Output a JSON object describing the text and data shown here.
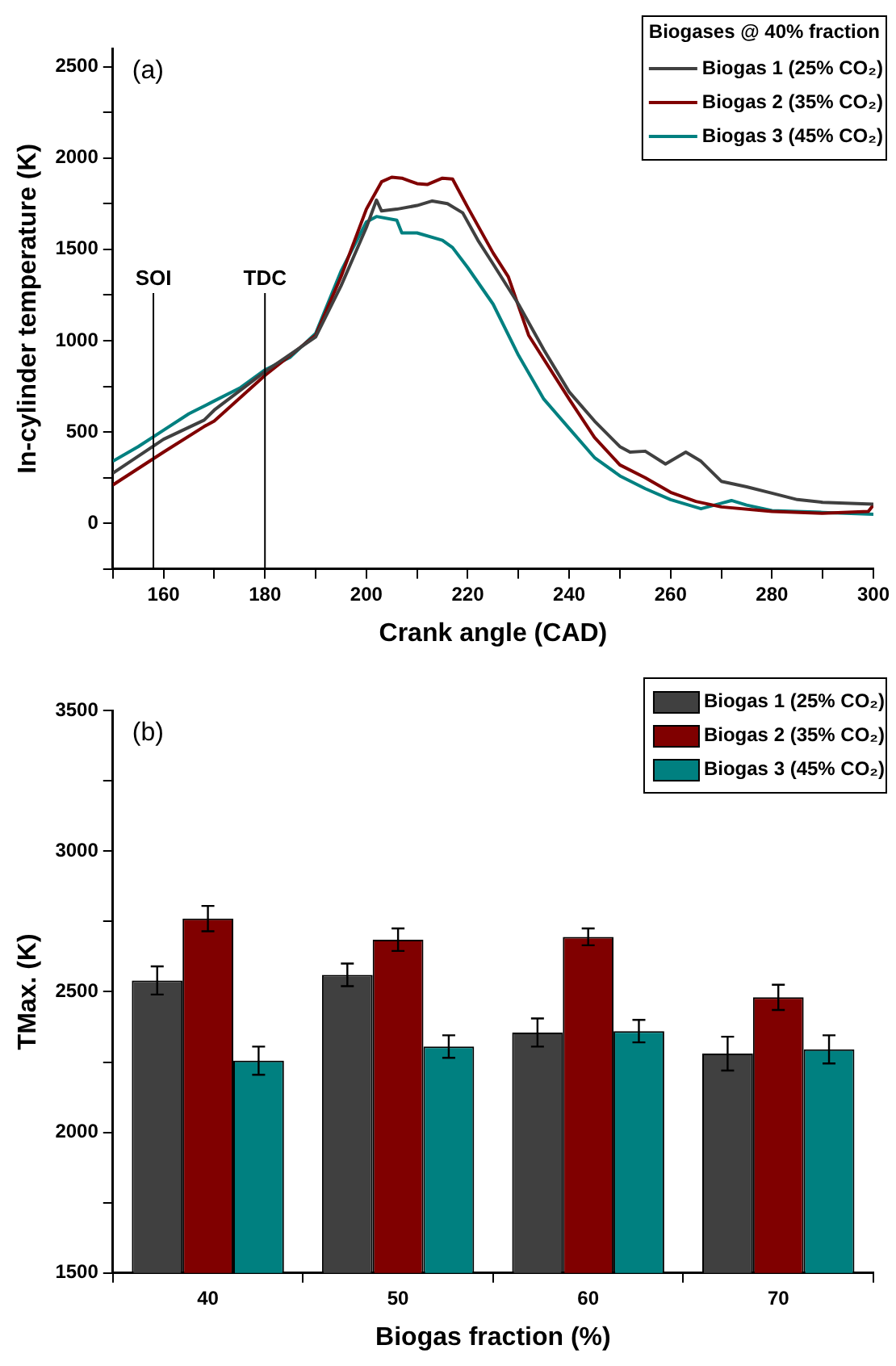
{
  "chart_data": [
    {
      "type": "line",
      "xlabel": "Crank angle (CAD)",
      "ylabel": "In-cylinder temperature (K)",
      "legend_title": "Biogases @ 40% fraction",
      "legend": "top right",
      "grid": false,
      "annotations": [
        "(a)"
      ],
      "xlim": [
        150,
        300
      ],
      "xticks": [
        {
          "value": 150,
          "label": null
        },
        160,
        {
          "value": 170,
          "label": null
        },
        180,
        {
          "value": 190,
          "label": null
        },
        200,
        {
          "value": 210,
          "label": null
        },
        220,
        {
          "value": 230,
          "label": null
        },
        240,
        {
          "value": 250,
          "label": null
        },
        260,
        {
          "value": 270,
          "label": null
        },
        280,
        {
          "value": 290,
          "label": null
        },
        300
      ],
      "ylim": [
        -250,
        2600
      ],
      "yticks": [
        {
          "value": -250,
          "label": null
        },
        0,
        {
          "value": 250,
          "label": null
        },
        500,
        {
          "value": 750,
          "label": null
        },
        1000,
        {
          "value": 1250,
          "label": null
        },
        1500,
        {
          "value": 1750,
          "label": null
        },
        2000,
        {
          "value": 2250,
          "label": null
        },
        2500
      ],
      "ref_lines": [
        {
          "axis": "x",
          "value": 158,
          "label": "SOI",
          "color": "#000000"
        },
        {
          "axis": "x",
          "value": 180,
          "label": "TDC",
          "color": "#000000"
        }
      ],
      "series": [
        {
          "name": "Biogas 1 (25% CO₂)",
          "color": "#404040",
          "x": [
            150,
            160,
            168,
            170,
            180,
            190,
            195,
            200,
            202,
            203,
            206,
            210,
            213,
            216,
            219,
            222,
            225,
            230,
            235,
            240,
            245,
            250,
            252,
            255,
            259,
            263,
            266,
            270,
            275,
            280,
            285,
            290,
            300
          ],
          "values": [
            275,
            460,
            565,
            620,
            830,
            1020,
            1300,
            1620,
            1770,
            1710,
            1720,
            1740,
            1765,
            1750,
            1700,
            1550,
            1420,
            1200,
            950,
            720,
            560,
            420,
            390,
            395,
            325,
            390,
            340,
            230,
            200,
            165,
            130,
            115,
            105
          ]
        },
        {
          "name": "Biogas 2 (35% CO₂)",
          "color": "#800000",
          "x": [
            150,
            160,
            168,
            170,
            180,
            190,
            195,
            200,
            203,
            205,
            207,
            210,
            212,
            215,
            217,
            220,
            225,
            228,
            232,
            240,
            245,
            250,
            255,
            260,
            265,
            270,
            280,
            290,
            299,
            300
          ],
          "values": [
            210,
            390,
            530,
            560,
            810,
            1030,
            1350,
            1720,
            1870,
            1895,
            1890,
            1860,
            1855,
            1890,
            1885,
            1730,
            1480,
            1350,
            1030,
            680,
            470,
            320,
            250,
            170,
            120,
            90,
            65,
            55,
            65,
            100
          ]
        },
        {
          "name": "Biogas 3 (45% CO₂)",
          "color": "#008080",
          "x": [
            150,
            155,
            160,
            165,
            170,
            175,
            180,
            185,
            190,
            195,
            200,
            202,
            206,
            207,
            210,
            215,
            217,
            220,
            225,
            230,
            235,
            240,
            245,
            250,
            255,
            260,
            266,
            270,
            272,
            275,
            280,
            290,
            300
          ],
          "values": [
            340,
            420,
            510,
            600,
            670,
            740,
            840,
            910,
            1040,
            1380,
            1650,
            1680,
            1660,
            1590,
            1590,
            1550,
            1510,
            1400,
            1200,
            920,
            680,
            520,
            360,
            260,
            190,
            130,
            80,
            110,
            125,
            100,
            70,
            60,
            50
          ]
        }
      ]
    },
    {
      "type": "bar",
      "xlabel": "Biogas fraction (%)",
      "ylabel": "TMax. (K)",
      "legend": "top right",
      "grid": false,
      "annotations": [
        "(b)"
      ],
      "categories": [
        "40",
        "50",
        "60",
        "70"
      ],
      "ylim": [
        1500,
        3500
      ],
      "yticks": [
        1500,
        {
          "value": 1750,
          "label": null
        },
        2000,
        {
          "value": 2250,
          "label": null
        },
        2500,
        {
          "value": 2750,
          "label": null
        },
        3000,
        {
          "value": 3250,
          "label": null
        },
        3500
      ],
      "series": [
        {
          "name": "Biogas 1 (25% CO₂)",
          "color": "#404040",
          "values": [
            2540,
            2560,
            2355,
            2280
          ],
          "errors": [
            50,
            40,
            50,
            60
          ]
        },
        {
          "name": "Biogas 2 (35% CO₂)",
          "color": "#800000",
          "values": [
            2760,
            2685,
            2695,
            2480
          ],
          "errors": [
            45,
            40,
            30,
            45
          ]
        },
        {
          "name": "Biogas 3 (45% CO₂)",
          "color": "#008080",
          "values": [
            2255,
            2305,
            2360,
            2295
          ],
          "errors": [
            50,
            40,
            40,
            50
          ]
        }
      ]
    }
  ]
}
